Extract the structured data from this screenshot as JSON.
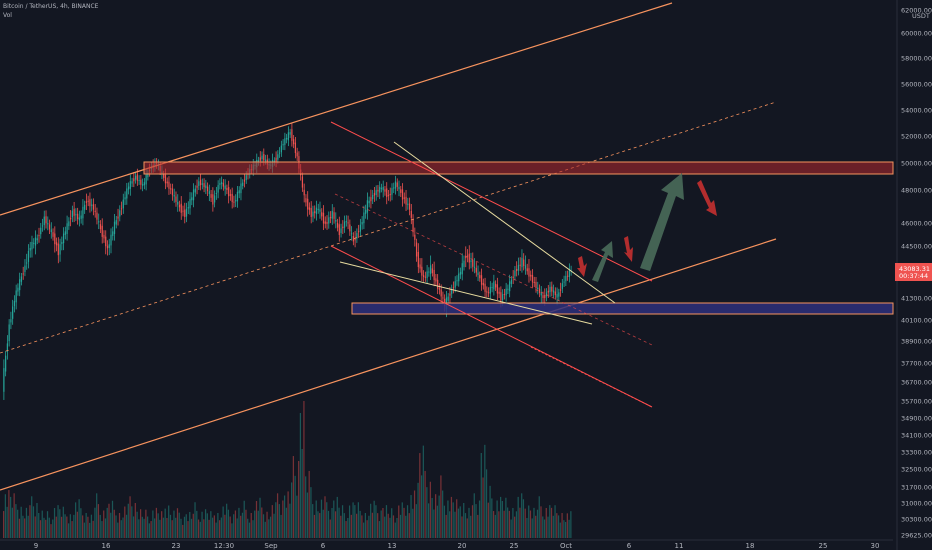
{
  "header": {
    "symbol": "Bitcoin / TetherUS, 4h, BINANCE",
    "volume_label": "Vol"
  },
  "chart_data": {
    "type": "candlestick",
    "currency": "USDT",
    "price_ticks": [
      {
        "value": 62000,
        "label": "62000.00"
      },
      {
        "value": 60000,
        "label": "60000.00"
      },
      {
        "value": 58000,
        "label": "58000.00"
      },
      {
        "value": 56000,
        "label": "56000.00"
      },
      {
        "value": 54000,
        "label": "54000.00"
      },
      {
        "value": 52000,
        "label": "52000.00"
      },
      {
        "value": 50000,
        "label": "50000.00"
      },
      {
        "value": 48000,
        "label": "48000.00"
      },
      {
        "value": 46000,
        "label": "46000.00"
      },
      {
        "value": 44500,
        "label": "44500.00"
      },
      {
        "value": 43500,
        "label": "43500.00"
      },
      {
        "value": 41300,
        "label": "41300.00"
      },
      {
        "value": 40100,
        "label": "40100.00"
      },
      {
        "value": 38900,
        "label": "38900.00"
      },
      {
        "value": 37700,
        "label": "37700.00"
      },
      {
        "value": 36700,
        "label": "36700.00"
      },
      {
        "value": 35700,
        "label": "35700.00"
      },
      {
        "value": 34900,
        "label": "34900.00"
      },
      {
        "value": 34100,
        "label": "34100.00"
      },
      {
        "value": 33300,
        "label": "33300.00"
      },
      {
        "value": 32500,
        "label": "32500.00"
      },
      {
        "value": 31700,
        "label": "31700.00"
      },
      {
        "value": 31000,
        "label": "31000.00"
      },
      {
        "value": 30300,
        "label": "30300.00"
      },
      {
        "value": 29625,
        "label": "29625.00"
      }
    ],
    "x_ticks": [
      "9",
      "16",
      "23",
      "12:30",
      "Sep",
      "6",
      "13",
      "20",
      "25",
      "Oct",
      "6",
      "11",
      "18",
      "25",
      "30"
    ],
    "current_price": {
      "label": "43083.31",
      "countdown": "00:37:44"
    },
    "top_tick_label": "6",
    "top_currency_label": "USDT",
    "colors": {
      "background": "#131722",
      "up": "#26a69a",
      "down": "#ef5350",
      "channel": "#f7935e",
      "wedge": "#ff4d4d",
      "triangle": "#e8dca0",
      "resistance_zone": "#b2282e",
      "support_zone": "#2e2f7a",
      "up_arrow": "#4a6b5a",
      "down_arrow": "#c53030"
    },
    "price_range": [
      29600,
      63300
    ],
    "candle_series": [
      [
        36400,
        39800
      ],
      [
        39800,
        41700
      ],
      [
        41700,
        43200
      ],
      [
        43200,
        44500
      ],
      [
        44500,
        45000
      ],
      [
        45000,
        46300
      ],
      [
        46300,
        45400
      ],
      [
        45400,
        44200
      ],
      [
        44200,
        45500
      ],
      [
        45500,
        46700
      ],
      [
        46700,
        46200
      ],
      [
        46200,
        47400
      ],
      [
        47400,
        46900
      ],
      [
        46900,
        45600
      ],
      [
        45600,
        44300
      ],
      [
        44300,
        45900
      ],
      [
        45900,
        47000
      ],
      [
        47000,
        48300
      ],
      [
        48300,
        49000
      ],
      [
        49000,
        48300
      ],
      [
        48300,
        49600
      ],
      [
        49600,
        50000
      ],
      [
        50000,
        48900
      ],
      [
        48900,
        48000
      ],
      [
        48000,
        47100
      ],
      [
        47100,
        46500
      ],
      [
        46500,
        47600
      ],
      [
        47600,
        48600
      ],
      [
        48600,
        48200
      ],
      [
        48200,
        47300
      ],
      [
        47300,
        48600
      ],
      [
        48600,
        48000
      ],
      [
        48000,
        47200
      ],
      [
        47200,
        48300
      ],
      [
        48300,
        49300
      ],
      [
        49300,
        49900
      ],
      [
        49900,
        50500
      ],
      [
        50500,
        49800
      ],
      [
        49800,
        50300
      ],
      [
        50300,
        51500
      ],
      [
        51500,
        52300
      ],
      [
        52300,
        50400
      ],
      [
        50400,
        47500
      ],
      [
        47500,
        46500
      ],
      [
        46500,
        46900
      ],
      [
        46900,
        45900
      ],
      [
        45900,
        46600
      ],
      [
        46600,
        45400
      ],
      [
        45400,
        46200
      ],
      [
        46200,
        44800
      ],
      [
        44800,
        45800
      ],
      [
        45800,
        47200
      ],
      [
        47200,
        47800
      ],
      [
        47800,
        48200
      ],
      [
        48200,
        47600
      ],
      [
        47600,
        48500
      ],
      [
        48500,
        47600
      ],
      [
        47600,
        46900
      ],
      [
        46900,
        44000
      ],
      [
        44000,
        42700
      ],
      [
        42700,
        43400
      ],
      [
        43400,
        42100
      ],
      [
        42100,
        40900
      ],
      [
        40900,
        41900
      ],
      [
        41900,
        42900
      ],
      [
        42900,
        44100
      ],
      [
        44100,
        43600
      ],
      [
        43600,
        42700
      ],
      [
        42700,
        41600
      ],
      [
        41600,
        42300
      ],
      [
        42300,
        41300
      ],
      [
        41300,
        42000
      ],
      [
        42000,
        43200
      ],
      [
        43200,
        43800
      ],
      [
        43800,
        43000
      ],
      [
        43000,
        42100
      ],
      [
        42100,
        41300
      ],
      [
        41300,
        42000
      ],
      [
        42000,
        41400
      ],
      [
        41400,
        42600
      ],
      [
        42600,
        43300
      ]
    ],
    "volume_series": [
      0.35,
      0.3,
      0.25,
      0.22,
      0.28,
      0.2,
      0.18,
      0.24,
      0.21,
      0.19,
      0.26,
      0.2,
      0.17,
      0.3,
      0.22,
      0.25,
      0.2,
      0.23,
      0.28,
      0.21,
      0.19,
      0.22,
      0.18,
      0.26,
      0.2,
      0.17,
      0.19,
      0.24,
      0.21,
      0.18,
      0.2,
      0.23,
      0.19,
      0.22,
      0.25,
      0.2,
      0.27,
      0.21,
      0.24,
      0.3,
      0.34,
      0.55,
      1.0,
      0.45,
      0.3,
      0.28,
      0.24,
      0.3,
      0.22,
      0.26,
      0.24,
      0.2,
      0.25,
      0.22,
      0.24,
      0.2,
      0.26,
      0.22,
      0.38,
      0.62,
      0.45,
      0.32,
      0.42,
      0.3,
      0.26,
      0.28,
      0.22,
      0.3,
      0.68,
      0.35,
      0.3,
      0.27,
      0.24,
      0.3,
      0.26,
      0.22,
      0.28,
      0.24,
      0.22,
      0.2,
      0.18
    ]
  }
}
